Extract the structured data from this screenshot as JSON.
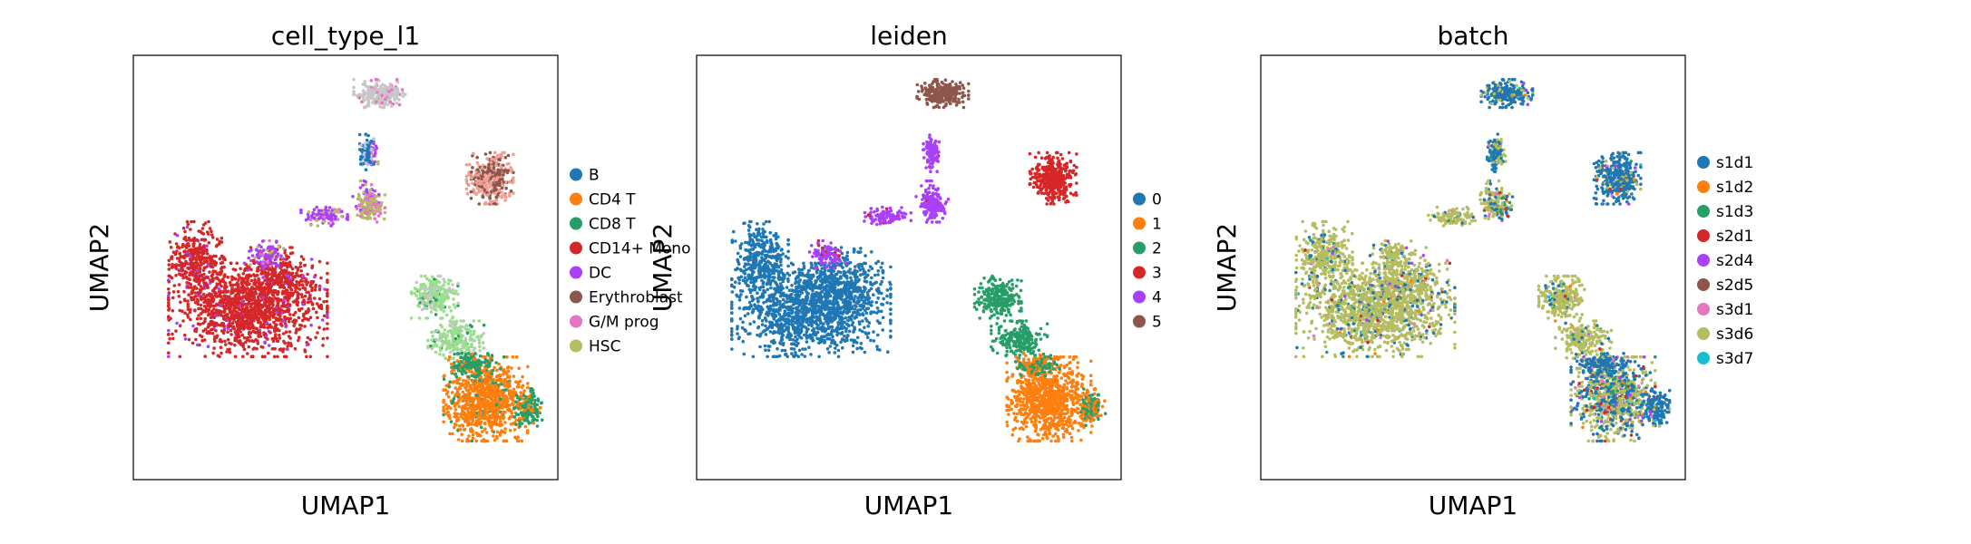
{
  "chart_data": [
    {
      "type": "scatter",
      "title": "cell_type_l1",
      "xlabel": "UMAP1",
      "ylabel": "UMAP2",
      "grid": false,
      "legend": "right",
      "series": [
        {
          "name": "B",
          "color": "#1f77b4"
        },
        {
          "name": "CD4 T",
          "color": "#ff7f0e"
        },
        {
          "name": "CD8 T",
          "color": "#279e68"
        },
        {
          "name": "CD14+ Mono",
          "color": "#d62728"
        },
        {
          "name": "DC",
          "color": "#aa40fc"
        },
        {
          "name": "Erythroblast",
          "color": "#8c564b"
        },
        {
          "name": "G/M prog",
          "color": "#e377c2"
        },
        {
          "name": "HSC",
          "color": "#b5bd61"
        }
      ]
    },
    {
      "type": "scatter",
      "title": "leiden",
      "xlabel": "UMAP1",
      "ylabel": "UMAP2",
      "grid": false,
      "legend": "right",
      "series": [
        {
          "name": "0",
          "color": "#1f77b4"
        },
        {
          "name": "1",
          "color": "#ff7f0e"
        },
        {
          "name": "2",
          "color": "#279e68"
        },
        {
          "name": "3",
          "color": "#d62728"
        },
        {
          "name": "4",
          "color": "#aa40fc"
        },
        {
          "name": "5",
          "color": "#8c564b"
        }
      ]
    },
    {
      "type": "scatter",
      "title": "batch",
      "xlabel": "UMAP1",
      "ylabel": "UMAP2",
      "grid": false,
      "legend": "right",
      "series": [
        {
          "name": "s1d1",
          "color": "#1f77b4"
        },
        {
          "name": "s1d2",
          "color": "#ff7f0e"
        },
        {
          "name": "s1d3",
          "color": "#279e68"
        },
        {
          "name": "s2d1",
          "color": "#d62728"
        },
        {
          "name": "s2d4",
          "color": "#aa40fc"
        },
        {
          "name": "s2d5",
          "color": "#8c564b"
        },
        {
          "name": "s3d1",
          "color": "#e377c2"
        },
        {
          "name": "s3d6",
          "color": "#b5bd61"
        },
        {
          "name": "s3d7",
          "color": "#17becf"
        }
      ]
    }
  ]
}
